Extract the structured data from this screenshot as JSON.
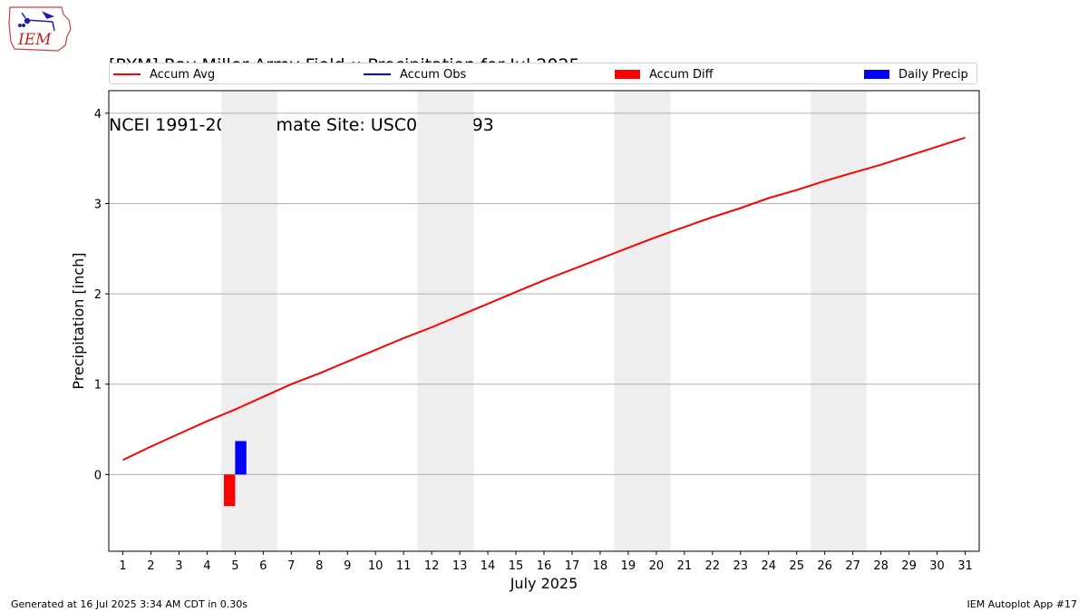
{
  "header": {
    "title_line1": "[RYM] Ray Miller Army Field :: Precipitation for Jul 2025",
    "title_line2": "NCEI 1991-2020 Climate Site: USC00214793"
  },
  "logo": {
    "text": "IEM"
  },
  "legend": [
    {
      "label": "Accum Avg",
      "kind": "line",
      "color": "#ff0000"
    },
    {
      "label": "Accum Obs",
      "kind": "line",
      "color": "#0000ff"
    },
    {
      "label": "Accum Diff",
      "kind": "box",
      "color": "#ff0000"
    },
    {
      "label": "Daily Precip",
      "kind": "box",
      "color": "#0000ff"
    }
  ],
  "footer": {
    "generated": "Generated at 16 Jul 2025 3:34 AM CDT in 0.30s",
    "app": "IEM Autoplot App #17"
  },
  "chart_data": {
    "type": "line",
    "title": "[RYM] Ray Miller Army Field :: Precipitation for Jul 2025",
    "xlabel": "July 2025",
    "ylabel": "Precipitation [inch]",
    "xlim": [
      0.5,
      31.5
    ],
    "ylim": [
      -0.85,
      4.25
    ],
    "x_ticks": [
      1,
      2,
      3,
      4,
      5,
      6,
      7,
      8,
      9,
      10,
      11,
      12,
      13,
      14,
      15,
      16,
      17,
      18,
      19,
      20,
      21,
      22,
      23,
      24,
      25,
      26,
      27,
      28,
      29,
      30,
      31
    ],
    "y_ticks": [
      0,
      1,
      2,
      3,
      4
    ],
    "grid": "horizontal",
    "legend_position": "top",
    "weekend_spans": [
      [
        4.5,
        6.5
      ],
      [
        11.5,
        13.5
      ],
      [
        18.5,
        20.5
      ],
      [
        25.5,
        27.5
      ]
    ],
    "series": [
      {
        "name": "Accum Avg",
        "type": "line",
        "color": "#ff0000",
        "x": [
          1,
          2,
          3,
          4,
          5,
          6,
          7,
          8,
          9,
          10,
          11,
          12,
          13,
          14,
          15,
          16,
          17,
          18,
          19,
          20,
          21,
          22,
          23,
          24,
          25,
          26,
          27,
          28,
          29,
          30,
          31
        ],
        "values": [
          0.16,
          0.31,
          0.45,
          0.59,
          0.72,
          0.86,
          1.0,
          1.12,
          1.25,
          1.38,
          1.51,
          1.63,
          1.76,
          1.89,
          2.02,
          2.15,
          2.27,
          2.39,
          2.51,
          2.63,
          2.74,
          2.85,
          2.95,
          3.06,
          3.15,
          3.25,
          3.34,
          3.43,
          3.53,
          3.63,
          3.73
        ]
      },
      {
        "name": "Accum Diff",
        "type": "bar",
        "color": "#ff0000",
        "x": [
          4.8
        ],
        "values": [
          -0.35
        ]
      },
      {
        "name": "Daily Precip",
        "type": "bar",
        "color": "#0000ff",
        "x": [
          5.2
        ],
        "values": [
          0.37
        ]
      }
    ]
  }
}
